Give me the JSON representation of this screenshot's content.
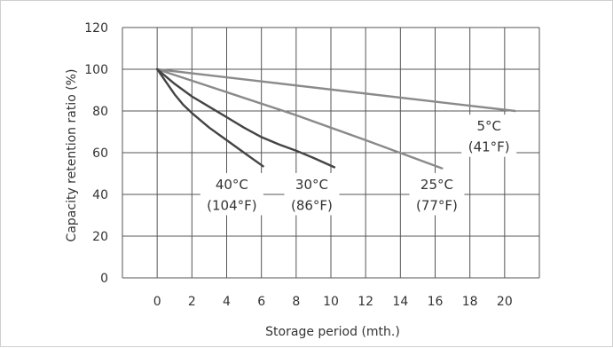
{
  "chart_data": {
    "type": "line",
    "title": "",
    "xlabel": "Storage period (mth.)",
    "ylabel": "Capacity retention ratio (%)",
    "xlim": [
      -2,
      22
    ],
    "ylim": [
      0,
      120
    ],
    "x_ticks": [
      0,
      2,
      4,
      6,
      8,
      10,
      12,
      14,
      16,
      18,
      20
    ],
    "y_ticks": [
      0,
      20,
      40,
      60,
      80,
      100,
      120
    ],
    "grid": true,
    "colors": {
      "grid": "#555555",
      "line_light": "#8a8a8a",
      "line_dark": "#444444",
      "text": "#333333"
    },
    "series": [
      {
        "name_lines": [
          "5°C",
          "(41°F)"
        ],
        "color": "#8a8a8a",
        "points": [
          [
            0,
            100
          ],
          [
            20.6,
            80
          ]
        ]
      },
      {
        "name_lines": [
          "25°C",
          "(77°F)"
        ],
        "color": "#8a8a8a",
        "points": [
          [
            0,
            100
          ],
          [
            4,
            89
          ],
          [
            8,
            78
          ],
          [
            12,
            66
          ],
          [
            16.4,
            52.5
          ]
        ]
      },
      {
        "name_lines": [
          "30°C",
          "(86°F)"
        ],
        "color": "#444444",
        "points": [
          [
            0,
            100
          ],
          [
            1,
            93
          ],
          [
            2,
            87
          ],
          [
            3,
            82
          ],
          [
            4,
            77
          ],
          [
            5,
            72
          ],
          [
            6,
            67.5
          ],
          [
            7,
            64
          ],
          [
            8,
            61
          ],
          [
            9,
            57.5
          ],
          [
            10.2,
            53
          ]
        ]
      },
      {
        "name_lines": [
          "40°C",
          "(104°F)"
        ],
        "color": "#444444",
        "points": [
          [
            0,
            100
          ],
          [
            0.5,
            94
          ],
          [
            1,
            88
          ],
          [
            1.5,
            83
          ],
          [
            2,
            79
          ],
          [
            3,
            72
          ],
          [
            4,
            66
          ],
          [
            5,
            60
          ],
          [
            6.1,
            53.5
          ]
        ]
      }
    ]
  }
}
